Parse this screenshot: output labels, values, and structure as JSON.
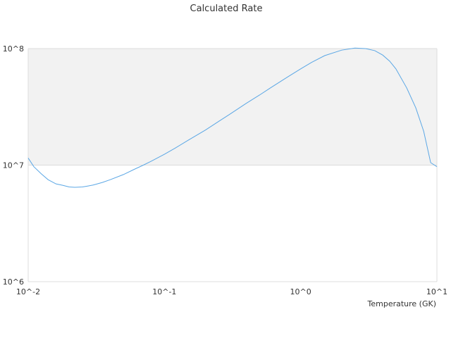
{
  "chart_data": {
    "type": "line",
    "title": "Calculated Rate",
    "xlabel": "Temperature (GK)",
    "ylabel": "",
    "x_scale": "log",
    "y_scale": "log",
    "xlim": [
      0.01,
      10
    ],
    "ylim": [
      1000000,
      100000000
    ],
    "x_tick_labels": [
      "10^-2",
      "10^-1",
      "10^0",
      "10^1"
    ],
    "y_tick_labels": [
      "10^6",
      "10^7",
      "10^8"
    ],
    "grid": "horizontal",
    "band_color": "#f2f2f2",
    "line_color": "#5ba7e5",
    "series": [
      {
        "x": [
          0.01,
          0.011,
          0.0125,
          0.014,
          0.016,
          0.018,
          0.02,
          0.022,
          0.025,
          0.028,
          0.03,
          0.035,
          0.04,
          0.05,
          0.06,
          0.07,
          0.08,
          0.1,
          0.12,
          0.15,
          0.2,
          0.25,
          0.3,
          0.4,
          0.5,
          0.6,
          0.8,
          1.0,
          1.2,
          1.5,
          2.0,
          2.5,
          3.0,
          3.5,
          4.0,
          4.5,
          5.0,
          6.0,
          7.0,
          8.0,
          9.0,
          10.0
        ],
        "y": [
          11500000,
          9700000,
          8400000,
          7500000,
          6900000,
          6700000,
          6500000,
          6450000,
          6500000,
          6650000,
          6750000,
          7100000,
          7500000,
          8300000,
          9200000,
          10000000,
          10800000,
          12400000,
          14000000,
          16400000,
          20000000,
          23700000,
          27200000,
          34000000,
          40000000,
          46000000,
          57000000,
          67000000,
          76000000,
          87000000,
          97000000,
          101000000,
          100000000,
          96000000,
          88000000,
          78000000,
          67000000,
          46000000,
          31000000,
          19500000,
          10500000,
          9700000
        ]
      }
    ]
  }
}
